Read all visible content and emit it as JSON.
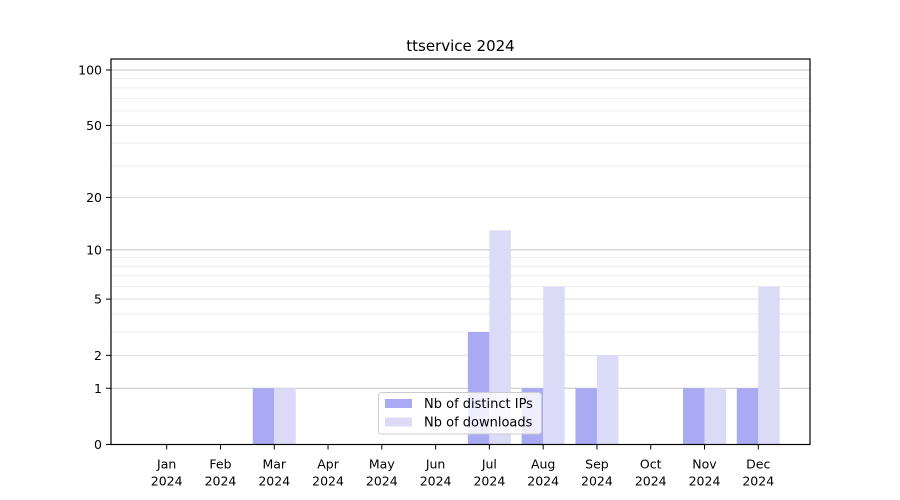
{
  "chart_data": {
    "type": "bar",
    "title": "ttservice 2024",
    "xlabel": "",
    "ylabel": "",
    "categories": [
      "Jan",
      "Feb",
      "Mar",
      "Apr",
      "May",
      "Jun",
      "Jul",
      "Aug",
      "Sep",
      "Oct",
      "Nov",
      "Dec"
    ],
    "x_tick_year_line": "2024",
    "series": [
      {
        "name": "Nb of distinct IPs",
        "color": "#a9a9f4",
        "values": [
          0,
          0,
          1,
          0,
          0,
          0,
          3,
          1,
          1,
          0,
          1,
          1
        ]
      },
      {
        "name": "Nb of downloads",
        "color": "#dbdbf8",
        "values": [
          0,
          0,
          1,
          0,
          0,
          0,
          13,
          6,
          2,
          0,
          1,
          6
        ]
      }
    ],
    "yscale": "log1p",
    "ylim": [
      0,
      100
    ],
    "yticks": [
      0,
      1,
      2,
      5,
      10,
      20,
      50,
      100
    ],
    "yticks_minor": [
      3,
      4,
      6,
      7,
      8,
      9,
      30,
      40,
      60,
      70,
      80,
      90
    ],
    "grid": "horizontal-on",
    "legend_position": "lower-center-inside",
    "colors": {
      "grid_decade": "#c4c4c4",
      "grid_labeled": "#dedede",
      "grid_minor": "#ededed",
      "spine": "#000000",
      "legend_border": "#cccccc"
    }
  }
}
